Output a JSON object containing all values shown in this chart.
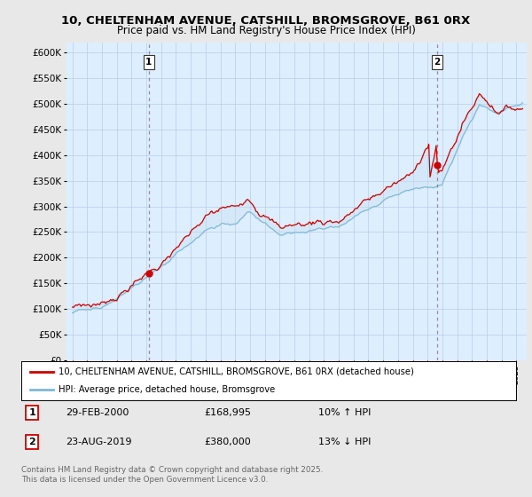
{
  "title": "10, CHELTENHAM AVENUE, CATSHILL, BROMSGROVE, B61 0RX",
  "subtitle": "Price paid vs. HM Land Registry's House Price Index (HPI)",
  "ytick_vals": [
    0,
    50000,
    100000,
    150000,
    200000,
    250000,
    300000,
    350000,
    400000,
    450000,
    500000,
    550000,
    600000
  ],
  "sale1_date": "29-FEB-2000",
  "sale1_price": 168995,
  "sale1_pct": "10% ↑ HPI",
  "sale2_date": "23-AUG-2019",
  "sale2_price": 380000,
  "sale2_pct": "13% ↓ HPI",
  "sale1_x": 2000.16,
  "sale2_x": 2019.64,
  "line1_color": "#cc0000",
  "line2_color": "#7eb8d4",
  "fill_color": "#c8dff0",
  "vline_color": "#dd4444",
  "legend1": "10, CHELTENHAM AVENUE, CATSHILL, BROMSGROVE, B61 0RX (detached house)",
  "legend2": "HPI: Average price, detached house, Bromsgrove",
  "footnote": "Contains HM Land Registry data © Crown copyright and database right 2025.\nThis data is licensed under the Open Government Licence v3.0.",
  "background": "#e8e8e8",
  "plot_bg": "#ddeeff"
}
